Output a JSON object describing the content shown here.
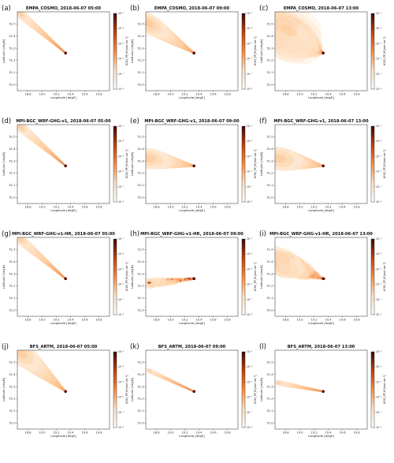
{
  "colors": {
    "plume_dark": "#5a0a0a",
    "plume_mid": "#c2410c",
    "plume_light": "#fdba74",
    "plume_faint": "#fff1e6"
  },
  "chart_data": [
    {
      "type": "heatmap",
      "letter": "(a)",
      "title": "EMPA_COSMO, 2018-06-07 05:00",
      "plume": "narrow",
      "spread": 0.35,
      "xlabel": "Longitude [degE]",
      "ylabel": "Latitude [degN]",
      "colorbar_label": "XCO2_PP_M [mol cm⁻²]"
    },
    {
      "type": "heatmap",
      "letter": "(b)",
      "title": "EMPA_COSMO, 2018-06-07 09:00",
      "plume": "fan",
      "spread": 0.6,
      "xlabel": "Longitude [degE]",
      "ylabel": "Latitude [degN]",
      "colorbar_label": "XCO2_PP_M [mol cm⁻²]"
    },
    {
      "type": "heatmap",
      "letter": "(c)",
      "title": "EMPA_COSMO, 2018-06-07 13:00",
      "plume": "broad",
      "spread": 1.0,
      "xlabel": "Longitude [degE]",
      "ylabel": "Latitude [degN]",
      "colorbar_label": "XCO2_PP_M [mol cm⁻²]"
    },
    {
      "type": "heatmap",
      "letter": "(d)",
      "title": "MPI-BGC_WRF-GHG-v1, 2018-06-07 05:00",
      "plume": "narrow",
      "spread": 0.45,
      "xlabel": "Longitude [degE]",
      "ylabel": "Latitude [degN]",
      "colorbar_label": "XCO2_PP_M [mol cm⁻²]"
    },
    {
      "type": "heatmap",
      "letter": "(e)",
      "title": "MPI-BGC_WRF-GHG-v1, 2018-06-07 09:00",
      "plume": "flat",
      "spread": 0.5,
      "xlabel": "Longitude [degE]",
      "ylabel": "Latitude [degN]",
      "colorbar_label": "XCO2_PP_M [mol cm⁻²]"
    },
    {
      "type": "heatmap",
      "letter": "(f)",
      "title": "MPI-BGC_WRF-GHG-v1, 2018-06-07 13:00",
      "plume": "flat",
      "spread": 0.75,
      "xlabel": "Longitude [degE]",
      "ylabel": "Latitude [degN]",
      "colorbar_label": "XCO2_PP_M [mol cm⁻²]"
    },
    {
      "type": "heatmap",
      "letter": "(g)",
      "title": "MPI-BGC_WRF-GHG-v1-HR, 2018-06-07 05:00",
      "plume": "narrow",
      "spread": 0.45,
      "xlabel": "Longitude [degE]",
      "ylabel": "Latitude [degN]",
      "colorbar_label": "XCO2_PP_M [mol cm⁻²]"
    },
    {
      "type": "heatmap",
      "letter": "(h)",
      "title": "MPI-BGC_WRF-GHG-v1-HR, 2018-06-07 09:00",
      "plume": "turbulent",
      "spread": 0.35,
      "xlabel": "Longitude [degE]",
      "ylabel": "Latitude [degN]",
      "colorbar_label": "XCO2_PP_M [mol cm⁻²]"
    },
    {
      "type": "heatmap",
      "letter": "(i)",
      "title": "MPI-BGC_WRF-GHG-v1-HR, 2018-06-07 13:00",
      "plume": "turbulent_fan",
      "spread": 0.7,
      "xlabel": "Longitude [degE]",
      "ylabel": "Latitude [degN]",
      "colorbar_label": "XCO2_PP_M [mol cm⁻²]"
    },
    {
      "type": "heatmap",
      "letter": "(j)",
      "title": "BFS_ARTM, 2018-06-07 05:00",
      "plume": "wedge",
      "spread": 0.7,
      "xlabel": "Longitude [degE]",
      "ylabel": "Latitude [degN]",
      "colorbar_label": "XCO2_PP_M [mol cm⁻²]"
    },
    {
      "type": "heatmap",
      "letter": "(k)",
      "title": "BFS_ARTM, 2018-06-07 09:00",
      "plume": "line",
      "spread": 0.15,
      "xlabel": "Longitude [degE]",
      "ylabel": "Latitude [degN]",
      "colorbar_label": "XCO2_PP_M [mol cm⁻²]"
    },
    {
      "type": "heatmap",
      "letter": "(l)",
      "title": "BFS_ARTM, 2018-06-07 13:00",
      "plume": "line_flat",
      "spread": 0.2,
      "xlabel": "Longitude [degE]",
      "ylabel": "Latitude [degN]",
      "colorbar_label": "XCO2_PP_M [mol cm⁻²]"
    }
  ],
  "axes": {
    "x_ticks": [
      "18.8",
      "19.0",
      "19.2",
      "19.4",
      "19.6",
      "19.8"
    ],
    "y_ticks": [
      "51.5",
      "51.4",
      "51.3",
      "51.2",
      "51.1",
      "51.0"
    ],
    "cb_ticks": [
      "10⁻³",
      "10⁻⁴",
      "10⁻⁵",
      "10⁻⁶",
      "10⁻⁷",
      "10⁻⁸"
    ],
    "xlim": [
      18.65,
      19.95
    ],
    "ylim": [
      50.95,
      51.6
    ]
  },
  "source_point": {
    "lon": 19.33,
    "lat": 51.26
  }
}
